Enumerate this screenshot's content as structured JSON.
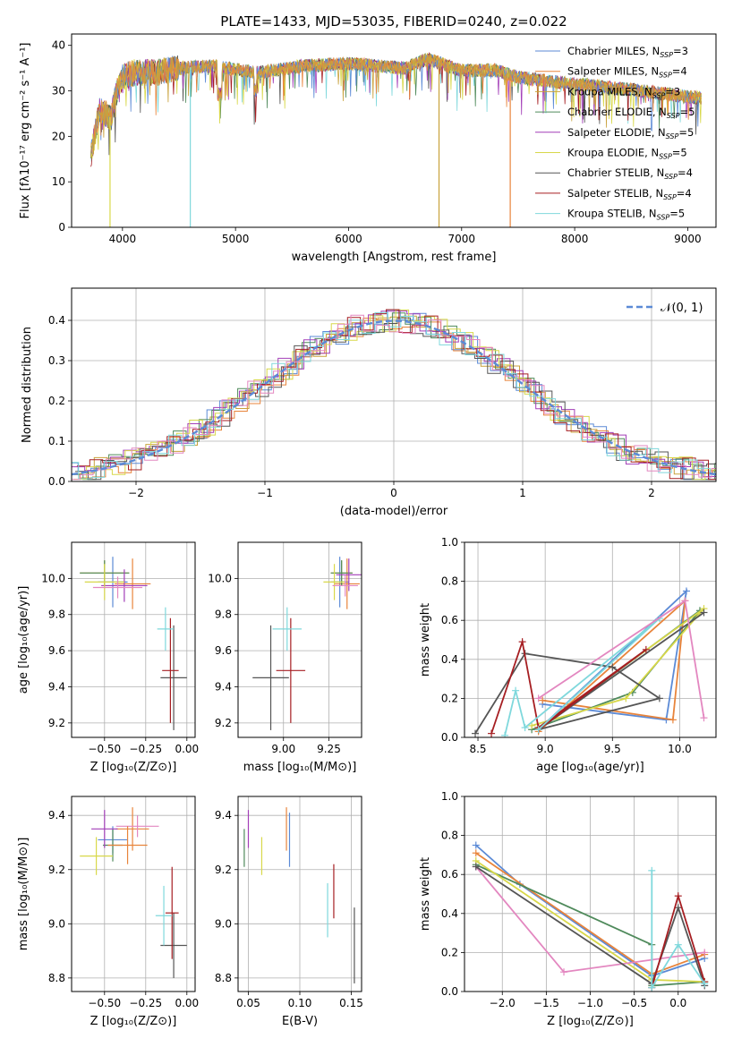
{
  "figure": {
    "title": "PLATE=1433, MJD=53035, FIBERID=0240, z=0.022"
  },
  "colors": [
    "#5b8ad6",
    "#e8843b",
    "#c9a23c",
    "#4f8a5b",
    "#a33fb8",
    "#d8d84a",
    "#555555",
    "#a61e22",
    "#7fd8dc",
    "#e387c0",
    "#2e4fa8"
  ],
  "chart_data": [
    {
      "id": "spectrum",
      "type": "line",
      "xlabel": "wavelength [Angstrom, rest frame]",
      "ylabel": "Flux [fλ10⁻¹⁷ erg cm⁻² s⁻¹ A⁻¹]",
      "xlim": [
        3550,
        9250
      ],
      "ylim": [
        0,
        42.5
      ],
      "xticks": [
        "4000",
        "5000",
        "6000",
        "7000",
        "8000",
        "9000"
      ],
      "yticks": [
        "0",
        "10",
        "20",
        "30",
        "40"
      ],
      "grid": false,
      "legend_position": "top-right",
      "series_names": [
        "Chabrier MILES, N_SSP=3",
        "Salpeter MILES, N_SSP=4",
        "Kroupa MILES, N_SSP=3",
        "Chabrier ELODIE, N_SSP=5",
        "Salpeter ELODIE, N_SSP=5",
        "Kroupa ELODIE, N_SSP=5",
        "Chabrier STELIB, N_SSP=4",
        "Salpeter STELIB, N_SSP=4",
        "Kroupa STELIB, N_SSP=5"
      ],
      "continuum": [
        [
          3720,
          16
        ],
        [
          3800,
          26
        ],
        [
          3900,
          24
        ],
        [
          3950,
          30
        ],
        [
          4000,
          33
        ],
        [
          4100,
          34
        ],
        [
          4300,
          34
        ],
        [
          4500,
          35
        ],
        [
          4800,
          35.5
        ],
        [
          5200,
          34
        ],
        [
          5600,
          35.5
        ],
        [
          6000,
          36
        ],
        [
          6500,
          35
        ],
        [
          6700,
          37
        ],
        [
          7000,
          34.5
        ],
        [
          7300,
          34.5
        ],
        [
          7500,
          33
        ],
        [
          7800,
          32
        ],
        [
          8200,
          31
        ],
        [
          8600,
          30
        ],
        [
          8900,
          29
        ],
        [
          9100,
          28.5
        ]
      ],
      "dips": [
        [
          3890,
          0
        ],
        [
          4600,
          0
        ],
        [
          6800,
          0
        ],
        [
          7430,
          0
        ]
      ]
    },
    {
      "id": "residual_hist",
      "type": "line",
      "xlabel": "(data-model)/error",
      "ylabel": "Normed distribution",
      "xlim": [
        -2.5,
        2.5
      ],
      "ylim": [
        0,
        0.48
      ],
      "xticks": [
        "−2",
        "−1",
        "0",
        "1",
        "2"
      ],
      "yticks": [
        "0.0",
        "0.1",
        "0.2",
        "0.3",
        "0.4"
      ],
      "grid": true,
      "legend_position": "top-right",
      "legend_label": "𝒩(0, 1)",
      "gaussian": {
        "mean": 0,
        "sigma": 1
      }
    },
    {
      "id": "age_vs_Z",
      "type": "scatter",
      "xlabel": "Z [log₁₀(Z/Z⊙)]",
      "ylabel": "age  [log₁₀(age/yr)]",
      "xlim": [
        -0.7,
        0.05
      ],
      "ylim": [
        9.12,
        10.2
      ],
      "xticks": [
        "−0.50",
        "−0.25",
        "0.00"
      ],
      "yticks": [
        "9.2",
        "9.4",
        "9.6",
        "9.8",
        "10.0"
      ],
      "grid": true,
      "points": [
        {
          "x": -0.45,
          "y": 9.98,
          "xerr": 0.09,
          "yerr": 0.14,
          "c": 0
        },
        {
          "x": -0.33,
          "y": 9.97,
          "xerr": 0.11,
          "yerr": 0.14,
          "c": 1
        },
        {
          "x": -0.5,
          "y": 10.03,
          "xerr": 0.15,
          "yerr": 0.07,
          "c": 2
        },
        {
          "x": -0.5,
          "y": 10.03,
          "xerr": 0.15,
          "yerr": 0.07,
          "c": 3
        },
        {
          "x": -0.38,
          "y": 9.96,
          "xerr": 0.14,
          "yerr": 0.09,
          "c": 4
        },
        {
          "x": -0.5,
          "y": 9.98,
          "xerr": 0.12,
          "yerr": 0.1,
          "c": 5
        },
        {
          "x": -0.08,
          "y": 9.45,
          "xerr": 0.08,
          "yerr": 0.29,
          "c": 6
        },
        {
          "x": -0.1,
          "y": 9.49,
          "xerr": 0.05,
          "yerr": 0.29,
          "c": 7
        },
        {
          "x": -0.13,
          "y": 9.72,
          "xerr": 0.05,
          "yerr": 0.12,
          "c": 8
        },
        {
          "x": -0.42,
          "y": 9.95,
          "xerr": 0.15,
          "yerr": 0.06,
          "c": 9
        }
      ]
    },
    {
      "id": "age_vs_mass",
      "type": "scatter",
      "xlabel": "mass [log₁₀(M/M⊙)]",
      "ylabel": "",
      "xlim": [
        8.75,
        9.43
      ],
      "ylim": [
        9.12,
        10.2
      ],
      "xticks": [
        "9.00",
        "9.25"
      ],
      "yticks": [
        "9.2",
        "9.4",
        "9.6",
        "9.8",
        "10.0"
      ],
      "grid": true,
      "points": [
        {
          "x": 9.31,
          "y": 9.98,
          "xerr": 0.05,
          "yerr": 0.14,
          "c": 0
        },
        {
          "x": 9.35,
          "y": 9.97,
          "xerr": 0.07,
          "yerr": 0.14,
          "c": 1
        },
        {
          "x": 9.32,
          "y": 10.03,
          "xerr": 0.06,
          "yerr": 0.07,
          "c": 2
        },
        {
          "x": 9.32,
          "y": 10.03,
          "xerr": 0.06,
          "yerr": 0.07,
          "c": 3
        },
        {
          "x": 9.36,
          "y": 10.02,
          "xerr": 0.07,
          "yerr": 0.09,
          "c": 4
        },
        {
          "x": 9.28,
          "y": 9.98,
          "xerr": 0.06,
          "yerr": 0.1,
          "c": 5
        },
        {
          "x": 8.93,
          "y": 9.45,
          "xerr": 0.1,
          "yerr": 0.29,
          "c": 6
        },
        {
          "x": 9.04,
          "y": 9.49,
          "xerr": 0.08,
          "yerr": 0.29,
          "c": 7
        },
        {
          "x": 9.02,
          "y": 9.72,
          "xerr": 0.08,
          "yerr": 0.12,
          "c": 8
        },
        {
          "x": 9.34,
          "y": 9.96,
          "xerr": 0.07,
          "yerr": 0.06,
          "c": 9
        }
      ]
    },
    {
      "id": "mass_weight_vs_age",
      "type": "line",
      "xlabel": "age  [log₁₀(age/yr)]",
      "ylabel": "mass weight",
      "xlim": [
        8.4,
        10.27
      ],
      "ylim": [
        0,
        1
      ],
      "xticks": [
        "8.5",
        "9.0",
        "9.5",
        "10.0"
      ],
      "yticks": [
        "0.0",
        "0.2",
        "0.4",
        "0.6",
        "0.8",
        "1.0"
      ],
      "grid": true,
      "series": [
        {
          "c": 0,
          "points": [
            [
              8.98,
              0.17
            ],
            [
              9.9,
              0.09
            ],
            [
              10.05,
              0.75
            ],
            [
              8.95,
              0.04
            ]
          ]
        },
        {
          "c": 1,
          "points": [
            [
              8.98,
              0.19
            ],
            [
              9.95,
              0.09
            ],
            [
              10.04,
              0.7
            ],
            [
              8.95,
              0.03
            ]
          ]
        },
        {
          "c": 3,
          "points": [
            [
              8.9,
              0.04
            ],
            [
              9.65,
              0.23
            ],
            [
              10.15,
              0.65
            ],
            [
              8.95,
              0.04
            ]
          ]
        },
        {
          "c": 5,
          "points": [
            [
              8.9,
              0.06
            ],
            [
              9.6,
              0.2
            ],
            [
              10.18,
              0.66
            ],
            [
              8.95,
              0.05
            ]
          ]
        },
        {
          "c": 6,
          "points": [
            [
              8.48,
              0.02
            ],
            [
              8.85,
              0.43
            ],
            [
              9.5,
              0.36
            ],
            [
              9.85,
              0.2
            ],
            [
              8.95,
              0.04
            ],
            [
              10.18,
              0.64
            ],
            [
              8.95,
              0.04
            ]
          ]
        },
        {
          "c": 7,
          "points": [
            [
              8.6,
              0.02
            ],
            [
              8.83,
              0.49
            ],
            [
              8.95,
              0.05
            ],
            [
              9.75,
              0.45
            ],
            [
              8.95,
              0.04
            ]
          ]
        },
        {
          "c": 8,
          "points": [
            [
              8.7,
              0.01
            ],
            [
              8.78,
              0.24
            ],
            [
              8.85,
              0.05
            ],
            [
              9.85,
              0.61
            ],
            [
              8.95,
              0.04
            ]
          ]
        },
        {
          "c": 9,
          "points": [
            [
              8.95,
              0.2
            ],
            [
              10.04,
              0.7
            ],
            [
              10.18,
              0.1
            ]
          ]
        }
      ]
    },
    {
      "id": "mass_vs_Z",
      "type": "scatter",
      "xlabel": "Z [log₁₀(Z/Z⊙)]",
      "ylabel": "mass [log₁₀(M/M⊙)]",
      "xlim": [
        -0.7,
        0.05
      ],
      "ylim": [
        8.75,
        9.47
      ],
      "xticks": [
        "−0.50",
        "−0.25",
        "0.00"
      ],
      "yticks": [
        "8.8",
        "9.0",
        "9.2",
        "9.4"
      ],
      "grid": true,
      "points": [
        {
          "x": -0.45,
          "y": 9.31,
          "xerr": 0.09,
          "yerr": 0.05,
          "c": 0
        },
        {
          "x": -0.33,
          "y": 9.35,
          "xerr": 0.1,
          "yerr": 0.08,
          "c": 1
        },
        {
          "x": -0.45,
          "y": 9.29,
          "xerr": 0.06,
          "yerr": 0.06,
          "c": 3
        },
        {
          "x": -0.5,
          "y": 9.35,
          "xerr": 0.08,
          "yerr": 0.07,
          "c": 4
        },
        {
          "x": -0.55,
          "y": 9.25,
          "xerr": 0.1,
          "yerr": 0.07,
          "c": 5
        },
        {
          "x": -0.08,
          "y": 8.92,
          "xerr": 0.08,
          "yerr": 0.12,
          "c": 6
        },
        {
          "x": -0.09,
          "y": 9.04,
          "xerr": 0.04,
          "yerr": 0.17,
          "c": 7
        },
        {
          "x": -0.14,
          "y": 9.03,
          "xerr": 0.05,
          "yerr": 0.11,
          "c": 8
        },
        {
          "x": -0.3,
          "y": 9.36,
          "xerr": 0.13,
          "yerr": 0.04,
          "c": 9
        },
        {
          "x": -0.36,
          "y": 9.29,
          "xerr": 0.12,
          "yerr": 0.07,
          "c": 1
        }
      ]
    },
    {
      "id": "mass_vs_EBV",
      "type": "scatter",
      "xlabel": "E(B-V)",
      "ylabel": "",
      "xlim": [
        0.04,
        0.16
      ],
      "ylim": [
        8.75,
        9.47
      ],
      "xticks": [
        "0.05",
        "0.10",
        "0.15"
      ],
      "yticks": [
        "8.8",
        "9.0",
        "9.2",
        "9.4"
      ],
      "grid": true,
      "points": [
        {
          "x": 0.046,
          "y": 9.28,
          "xerr": 0,
          "yerr": 0.07,
          "c": 3
        },
        {
          "x": 0.05,
          "y": 9.35,
          "xerr": 0,
          "yerr": 0.07,
          "c": 4
        },
        {
          "x": 0.063,
          "y": 9.25,
          "xerr": 0,
          "yerr": 0.07,
          "c": 5
        },
        {
          "x": 0.087,
          "y": 9.35,
          "xerr": 0,
          "yerr": 0.08,
          "c": 1
        },
        {
          "x": 0.09,
          "y": 9.31,
          "xerr": 0,
          "yerr": 0.1,
          "c": 0
        },
        {
          "x": 0.127,
          "y": 9.05,
          "xerr": 0,
          "yerr": 0.1,
          "c": 8
        },
        {
          "x": 0.133,
          "y": 9.12,
          "xerr": 0,
          "yerr": 0.1,
          "c": 7
        },
        {
          "x": 0.153,
          "y": 8.92,
          "xerr": 0,
          "yerr": 0.14,
          "c": 6
        }
      ]
    },
    {
      "id": "mass_weight_vs_Z",
      "type": "line",
      "xlabel": "Z [log₁₀(Z/Z⊙)]",
      "ylabel": "mass weight",
      "xlim": [
        -2.43,
        0.43
      ],
      "ylim": [
        0,
        1
      ],
      "xticks": [
        "−2.0",
        "−1.5",
        "−1.0",
        "−0.5",
        "0.0"
      ],
      "yticks": [
        "0.0",
        "0.2",
        "0.4",
        "0.6",
        "0.8",
        "1.0"
      ],
      "grid": true,
      "series": [
        {
          "c": 0,
          "points": [
            [
              -2.3,
              0.75
            ],
            [
              -1.8,
              0.55
            ],
            [
              -0.3,
              0.08
            ],
            [
              0.3,
              0.17
            ]
          ]
        },
        {
          "c": 1,
          "points": [
            [
              -2.3,
              0.71
            ],
            [
              -0.3,
              0.09
            ],
            [
              0.3,
              0.19
            ]
          ]
        },
        {
          "c": 3,
          "points": [
            [
              -2.3,
              0.65
            ],
            [
              -0.3,
              0.24
            ],
            [
              -0.3,
              0.03
            ],
            [
              0.3,
              0.05
            ]
          ]
        },
        {
          "c": 5,
          "points": [
            [
              -2.3,
              0.67
            ],
            [
              -0.3,
              0.06
            ],
            [
              0.3,
              0.05
            ]
          ]
        },
        {
          "c": 9,
          "points": [
            [
              -2.3,
              0.64
            ],
            [
              -1.3,
              0.1
            ],
            [
              0.3,
              0.2
            ]
          ]
        },
        {
          "c": 6,
          "points": [
            [
              -2.3,
              0.64
            ],
            [
              -0.3,
              0.04
            ],
            [
              0,
              0.43
            ],
            [
              0.3,
              0.03
            ]
          ]
        },
        {
          "c": 7,
          "points": [
            [
              -0.3,
              0.02
            ],
            [
              0,
              0.49
            ],
            [
              0.3,
              0.05
            ]
          ]
        },
        {
          "c": 8,
          "points": [
            [
              -0.3,
              0.62
            ],
            [
              -0.3,
              0.02
            ],
            [
              0,
              0.24
            ],
            [
              0.3,
              0.04
            ]
          ]
        }
      ]
    }
  ]
}
